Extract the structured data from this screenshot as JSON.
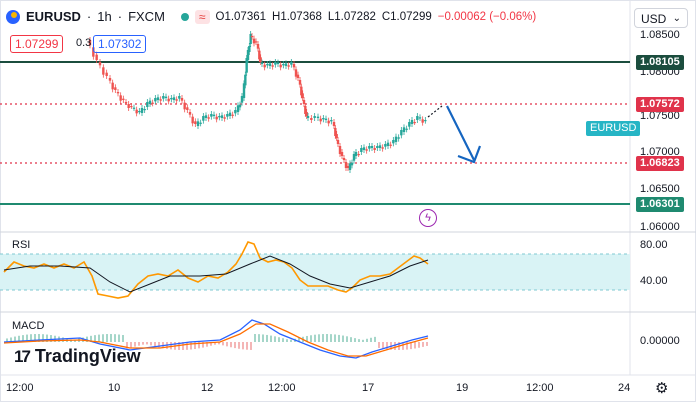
{
  "header": {
    "symbol": "EURUSD",
    "interval": "1h",
    "exchange": "FXCM",
    "wave_icon": "≈",
    "ohlc": {
      "open": "O1.07361",
      "high": "H1.07368",
      "low": "L1.07282",
      "close": "C1.07299",
      "change": "−0.00062 (−0.06%)"
    }
  },
  "trade": {
    "sell_price": "1.07299",
    "spread": "0.3",
    "buy_price": "1.07302"
  },
  "currency_select": {
    "value": "USD",
    "chevron": "⌄"
  },
  "price_axis": {
    "ticks": [
      "1.08500",
      "1.08000",
      "1.07500",
      "1.07000",
      "1.06500",
      "1.06000"
    ],
    "tags": {
      "res1": "1.08105",
      "res2": "1.07572",
      "sup1": "1.06823",
      "sup2": "1.06301"
    },
    "symbol_tag": "EURUSD"
  },
  "rsi": {
    "label": "RSI",
    "ticks": [
      "80.00",
      "40.00"
    ]
  },
  "macd": {
    "label": "MACD",
    "ticks": [
      "0.00000"
    ]
  },
  "time_axis": [
    "12:00",
    "10",
    "12",
    "12:00",
    "17",
    "19",
    "12:00",
    "24"
  ],
  "branding": {
    "mark": "17",
    "name": "TradingView"
  },
  "icons": {
    "bolt": "ϟ",
    "settings": "⚙"
  },
  "colors": {
    "up": "#26a69a",
    "down": "#ef5350",
    "resistance_line": "#1b4d3e",
    "level_dotted": "#e0334b",
    "arrow": "#1565c0",
    "rsi_fill": "#d9f3f5",
    "macd_line": "#2962ff",
    "signal_line": "#ff6d00"
  }
}
